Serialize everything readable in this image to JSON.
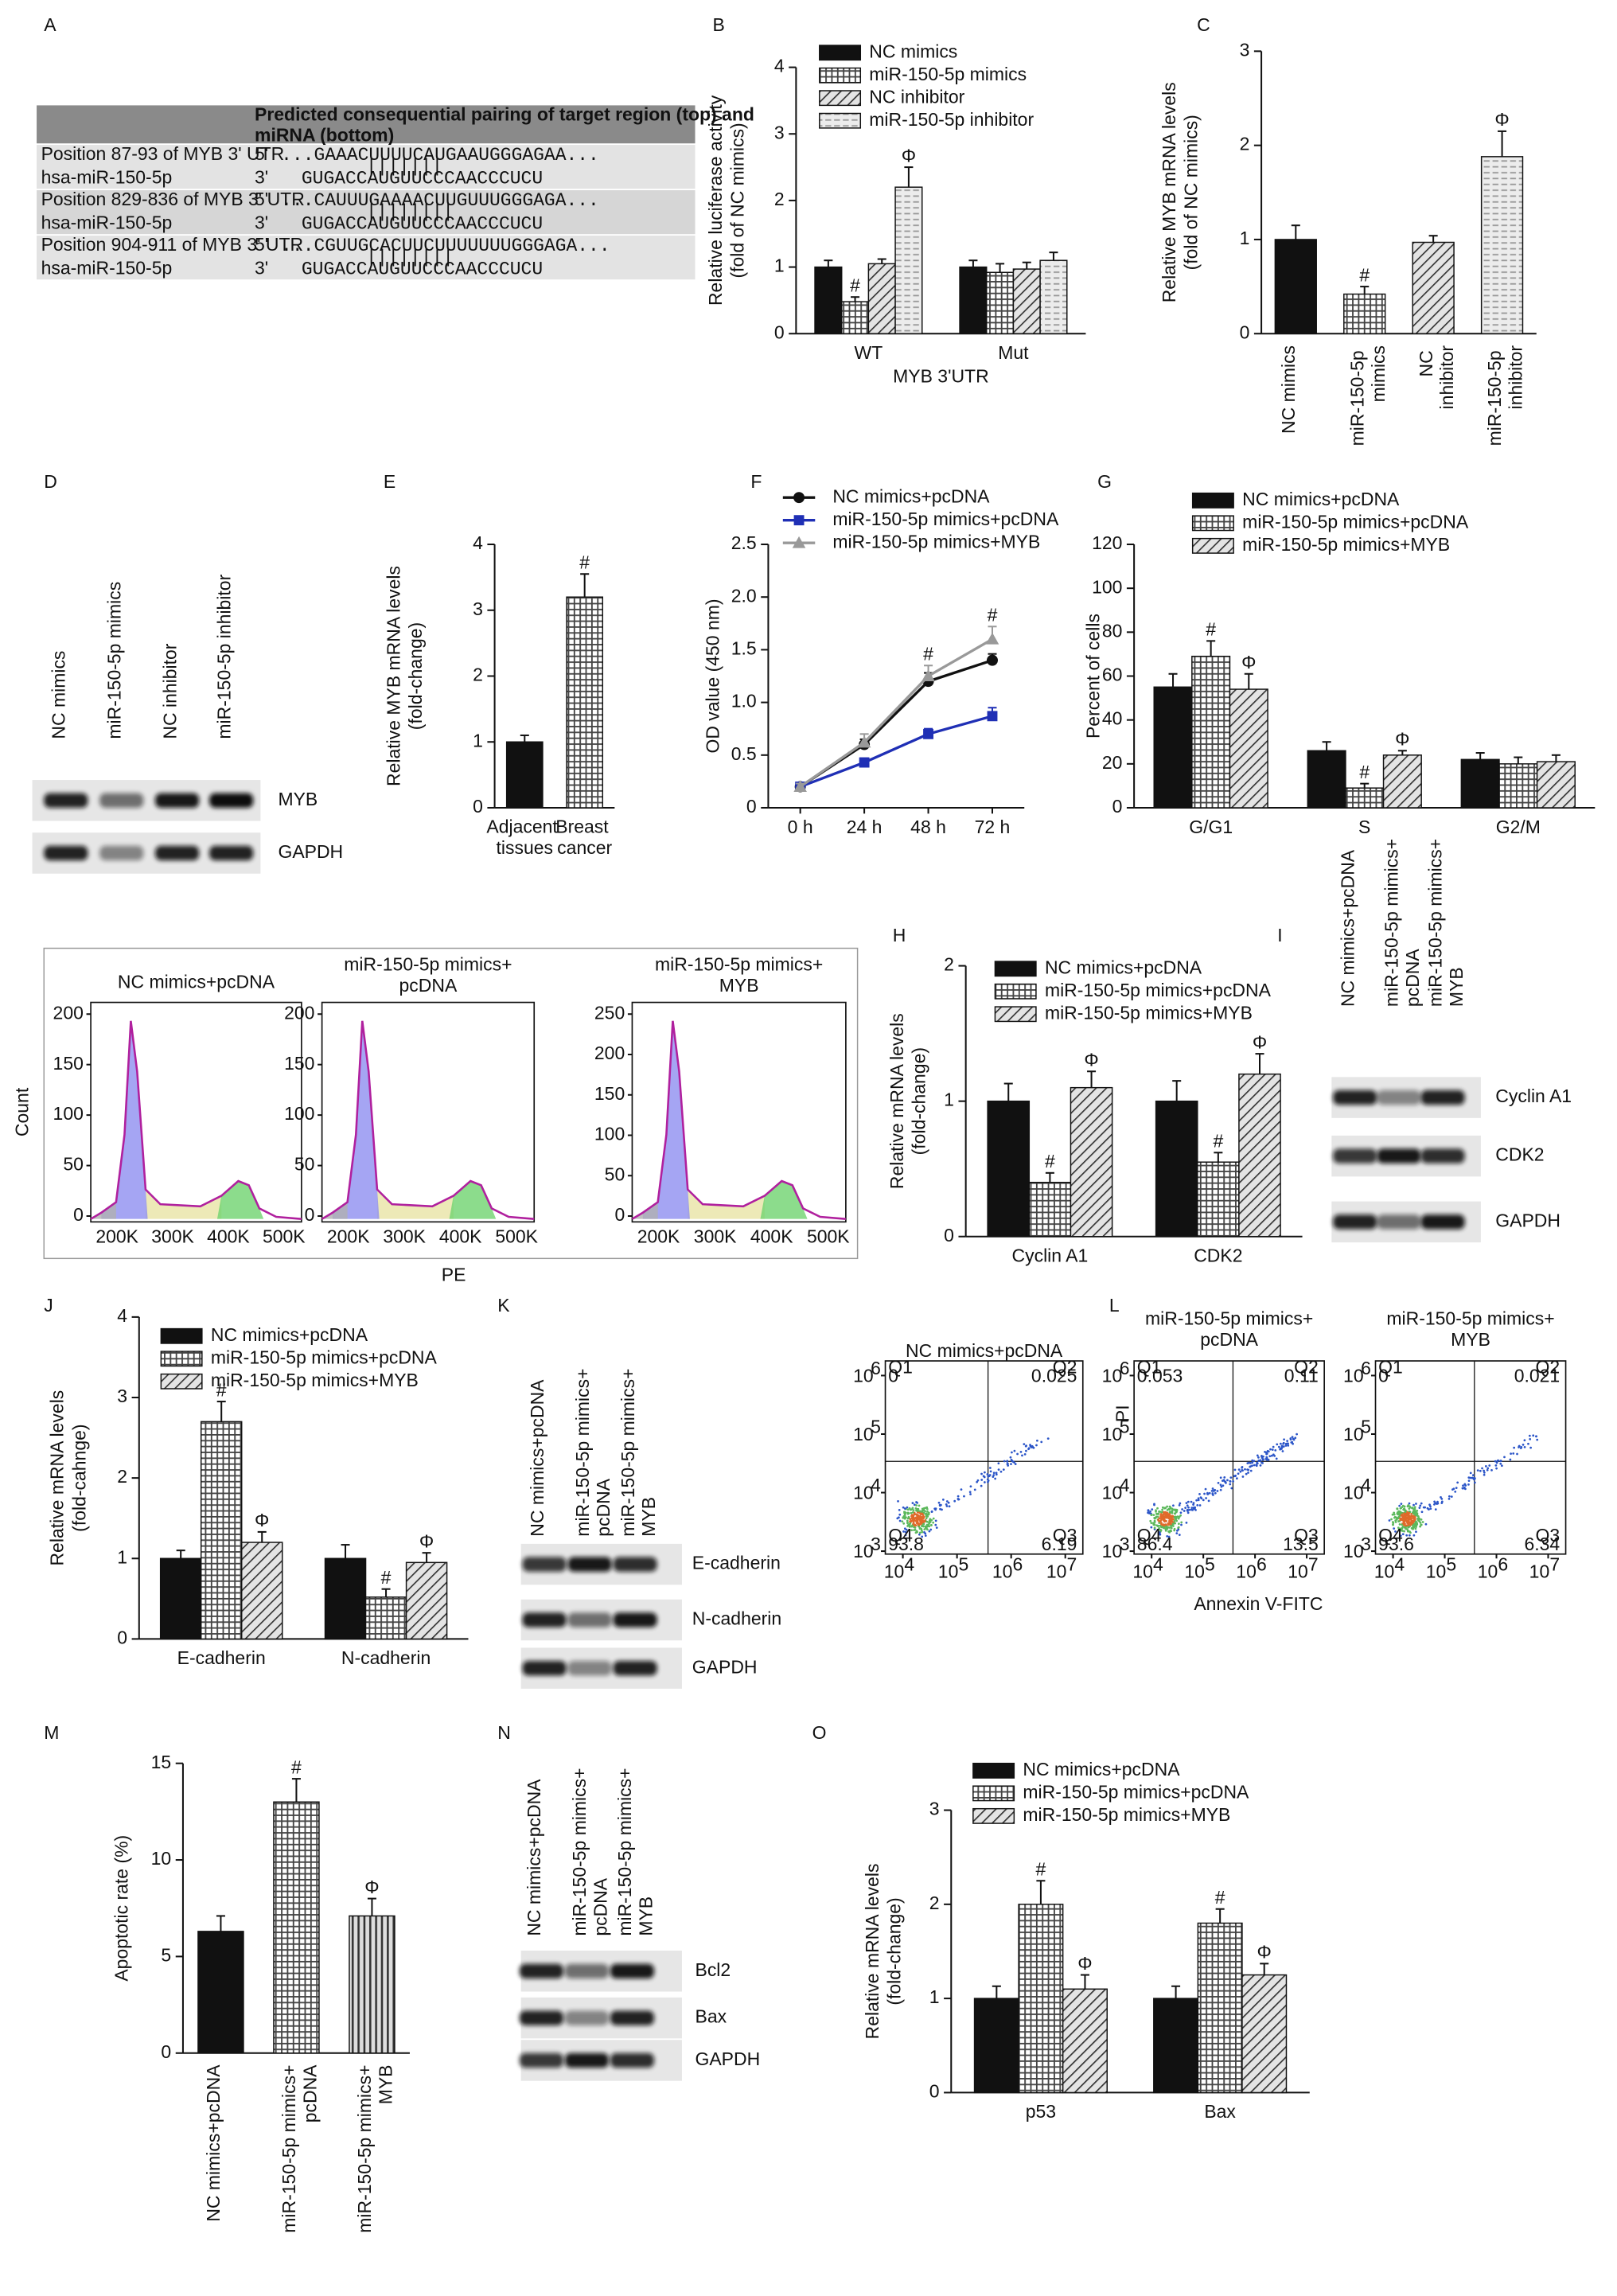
{
  "table": {
    "panel": "A",
    "header": "Predicted consequential pairing of target region (top) and miRNA (bottom)",
    "rows": [
      {
        "target": "Position 87-93 of MYB 3' UTR",
        "end5": "5'",
        "target_seq": "...GAAACUUUUCAUGAAUGGGAGAA...",
        "pairing": "|||||||",
        "mirna": "hsa-miR-150-5p",
        "end3": "3'",
        "mirna_seq": "GUGACCAUGUUCCCAACCCUCU"
      },
      {
        "target": "Position 829-836 of MYB 3' UTR",
        "end5": "5'",
        "target_seq": "...CAUUUGAAAACUUGUUUGGGAGA...",
        "pairing": "||||||||",
        "mirna": "hsa-miR-150-5p",
        "end3": "3'",
        "mirna_seq": "GUGACCAUGUUCCCAACCCUCU"
      },
      {
        "target": "Position 904-911 of MYB 3' UTR",
        "end5": "5'",
        "target_seq": "...CGUUGCACUUCUUUUUUUGGGAGA...",
        "pairing": "||||||||",
        "mirna": "hsa-miR-150-5p",
        "end3": "3'",
        "mirna_seq": "GUGACCAUGUUCCCAACCCUCU"
      }
    ]
  },
  "chart_data": [
    {
      "panel": "B",
      "type": "bar",
      "ylabel": [
        "Relative luciferase activity",
        "(fold of NC mimics)"
      ],
      "xlabel": "MYB 3'UTR",
      "categories": [
        "WT",
        "Mut"
      ],
      "series": [
        {
          "name": "NC mimics",
          "pattern": "solid",
          "values": [
            1.0,
            1.0
          ],
          "errors": [
            0.1,
            0.1
          ]
        },
        {
          "name": "miR-150-5p mimics",
          "pattern": "grid",
          "values": [
            0.48,
            0.92
          ],
          "errors": [
            0.07,
            0.13
          ],
          "markers": [
            "#",
            null
          ]
        },
        {
          "name": "NC inhibitor",
          "pattern": "hatch",
          "values": [
            1.05,
            0.97
          ],
          "errors": [
            0.07,
            0.1
          ]
        },
        {
          "name": "miR-150-5p inhibitor",
          "pattern": "dash",
          "values": [
            2.2,
            1.1
          ],
          "errors": [
            0.3,
            0.12
          ],
          "markers": [
            "Φ",
            null
          ]
        }
      ],
      "ylim": [
        0,
        4
      ],
      "yticks": [
        0,
        1,
        2,
        3,
        4
      ],
      "legend": "upper left"
    },
    {
      "panel": "C",
      "type": "bar",
      "ylabel": [
        "Relative MYB mRNA levels",
        "(fold of NC mimics)"
      ],
      "categories": [
        "NC mimics",
        "miR-150-5p mimics",
        "NC inhibitor",
        "miR-150-5p inhibitor"
      ],
      "values": [
        1.0,
        0.42,
        0.97,
        1.88
      ],
      "errors": [
        0.15,
        0.08,
        0.07,
        0.27
      ],
      "markers": [
        null,
        "#",
        null,
        "Φ"
      ],
      "patterns": [
        "solid",
        "grid",
        "hatch",
        "dash"
      ],
      "ylim": [
        0,
        3
      ],
      "yticks": [
        0,
        1,
        2,
        3
      ]
    },
    {
      "panel": "E",
      "type": "bar",
      "ylabel": [
        "Relative MYB mRNA levels",
        "(fold-change)"
      ],
      "categories": [
        "Adjacent tissues",
        "Breast cancer"
      ],
      "values": [
        1.0,
        3.2
      ],
      "errors": [
        0.1,
        0.35
      ],
      "markers": [
        null,
        "#"
      ],
      "patterns": [
        "solid",
        "grid"
      ],
      "ylim": [
        0,
        4
      ],
      "yticks": [
        0,
        1,
        2,
        3,
        4
      ]
    },
    {
      "panel": "F",
      "type": "line",
      "ylabel": [
        "OD value (450 nm)"
      ],
      "x": [
        "0 h",
        "24 h",
        "48 h",
        "72 h"
      ],
      "series": [
        {
          "name": "NC mimics+pcDNA",
          "color": "#111111",
          "marker": "circle",
          "values": [
            0.2,
            0.6,
            1.2,
            1.4
          ],
          "errors": [
            0.03,
            0.05,
            0.08,
            0.06
          ]
        },
        {
          "name": "miR-150-5p mimics+pcDNA",
          "color": "#1f2fb5",
          "marker": "square",
          "values": [
            0.2,
            0.43,
            0.7,
            0.87
          ],
          "errors": [
            0.03,
            0.04,
            0.05,
            0.08
          ]
        },
        {
          "name": "miR-150-5p mimics+MYB",
          "color": "#999999",
          "marker": "triangle",
          "values": [
            0.2,
            0.62,
            1.25,
            1.6
          ],
          "errors": [
            0.03,
            0.08,
            0.1,
            0.12
          ],
          "markers": [
            null,
            null,
            "#",
            "#"
          ]
        }
      ],
      "ylim": [
        0,
        2.5
      ],
      "yticks": [
        0,
        0.5,
        {
          "value": 1,
          "label": "1.0"
        },
        1.5,
        {
          "value": 2,
          "label": "2.0"
        },
        2.5
      ],
      "legend": "upper left"
    },
    {
      "panel": "G",
      "type": "bar",
      "ylabel": [
        "Percent of cells"
      ],
      "categories": [
        "G/G1",
        "S",
        "G2/M"
      ],
      "series": [
        {
          "name": "NC mimics+pcDNA",
          "pattern": "solid",
          "values": [
            55,
            26,
            22
          ],
          "errors": [
            6,
            4,
            3
          ]
        },
        {
          "name": "miR-150-5p mimics+pcDNA",
          "pattern": "grid",
          "values": [
            69,
            9,
            20
          ],
          "errors": [
            7,
            2,
            3
          ],
          "markers": [
            "#",
            "#",
            null
          ]
        },
        {
          "name": "miR-150-5p mimics+MYB",
          "pattern": "hatch",
          "values": [
            54,
            24,
            21
          ],
          "errors": [
            7,
            2,
            3
          ],
          "markers": [
            "Φ",
            "Φ",
            null
          ]
        }
      ],
      "ylim": [
        0,
        120
      ],
      "yticks": [
        0,
        20,
        40,
        60,
        80,
        100,
        120
      ],
      "legend": "upper left"
    },
    {
      "panel": "H",
      "type": "bar",
      "ylabel": [
        "Relative mRNA levels",
        "(fold-change)"
      ],
      "categories": [
        "Cyclin A1",
        "CDK2"
      ],
      "series": [
        {
          "name": "NC mimics+pcDNA",
          "pattern": "solid",
          "values": [
            1.0,
            1.0
          ],
          "errors": [
            0.13,
            0.15
          ]
        },
        {
          "name": "miR-150-5p mimics+pcDNA",
          "pattern": "grid",
          "values": [
            0.4,
            0.55
          ],
          "errors": [
            0.07,
            0.07
          ],
          "markers": [
            "#",
            "#"
          ]
        },
        {
          "name": "miR-150-5p mimics+MYB",
          "pattern": "hatch",
          "values": [
            1.1,
            1.2
          ],
          "errors": [
            0.12,
            0.15
          ],
          "markers": [
            "Φ",
            "Φ"
          ]
        }
      ],
      "ylim": [
        0,
        2
      ],
      "yticks": [
        0,
        1,
        2
      ],
      "legend": "upper left"
    },
    {
      "panel": "J",
      "type": "bar",
      "ylabel": [
        "Relative mRNA levels",
        "(fold-cahnge)"
      ],
      "categories": [
        "E-cadherin",
        "N-cadherin"
      ],
      "series": [
        {
          "name": "NC mimics+pcDNA",
          "pattern": "solid",
          "values": [
            1.0,
            1.0
          ],
          "errors": [
            0.1,
            0.17
          ]
        },
        {
          "name": "miR-150-5p mimics+pcDNA",
          "pattern": "grid",
          "values": [
            2.7,
            0.52
          ],
          "errors": [
            0.25,
            0.1
          ],
          "markers": [
            "#",
            "#"
          ]
        },
        {
          "name": "miR-150-5p mimics+MYB",
          "pattern": "hatch",
          "values": [
            1.2,
            0.95
          ],
          "errors": [
            0.13,
            0.12
          ],
          "markers": [
            "Φ",
            "Φ"
          ]
        }
      ],
      "ylim": [
        0,
        4
      ],
      "yticks": [
        0,
        1,
        2,
        3,
        4
      ],
      "legend": "upper left"
    },
    {
      "panel": "M",
      "type": "bar",
      "ylabel": [
        "Apoptotic rate (%)"
      ],
      "categories": [
        "NC mimics+pcDNA",
        "miR-150-5p mimics+pcDNA",
        "miR-150-5p mimics+MYB"
      ],
      "values": [
        6.3,
        13,
        7.1
      ],
      "errors": [
        0.8,
        1.2,
        0.9
      ],
      "markers": [
        null,
        "#",
        "Φ"
      ],
      "patterns": [
        "solid",
        "grid",
        "vstripe"
      ],
      "ylim": [
        0,
        15
      ],
      "yticks": [
        0,
        5,
        10,
        15
      ]
    },
    {
      "panel": "O",
      "type": "bar",
      "ylabel": [
        "Relative mRNA levels",
        "(fold-change)"
      ],
      "categories": [
        "p53",
        "Bax"
      ],
      "series": [
        {
          "name": "NC mimics+pcDNA",
          "pattern": "solid",
          "values": [
            1.0,
            1.0
          ],
          "errors": [
            0.13,
            0.13
          ]
        },
        {
          "name": "miR-150-5p mimics+pcDNA",
          "pattern": "grid",
          "values": [
            2.0,
            1.8
          ],
          "errors": [
            0.25,
            0.15
          ],
          "markers": [
            "#",
            "#"
          ]
        },
        {
          "name": "miR-150-5p mimics+MYB",
          "pattern": "hatch",
          "values": [
            1.1,
            1.25
          ],
          "errors": [
            0.15,
            0.12
          ],
          "markers": [
            "Φ",
            "Φ"
          ]
        }
      ],
      "ylim": [
        0,
        3
      ],
      "yticks": [
        0,
        1,
        2,
        3
      ],
      "legend": "upper left"
    }
  ],
  "blots": [
    {
      "panel": "D",
      "lanes": [
        "NC mimics",
        "miR-150-5p mimics",
        "NC inhibitor",
        "miR-150-5p inhibitor"
      ],
      "bands": [
        "MYB",
        "GAPDH"
      ]
    },
    {
      "panel": "I",
      "lanes": [
        "NC mimics+pcDNA",
        "miR-150-5p mimics+pcDNA",
        "miR-150-5p mimics+MYB"
      ],
      "bands": [
        "Cyclin A1",
        "CDK2",
        "GAPDH"
      ]
    },
    {
      "panel": "K",
      "lanes": [
        "NC mimics+pcDNA",
        "miR-150-5p mimics+pcDNA",
        "miR-150-5p mimics+MYB"
      ],
      "bands": [
        "E-cadherin",
        "N-cadherin",
        "GAPDH"
      ]
    },
    {
      "panel": "N",
      "lanes": [
        "NC mimics+pcDNA",
        "miR-150-5p mimics+pcDNA",
        "miR-150-5p mimics+MYB"
      ],
      "bands": [
        "Bcl2",
        "Bax",
        "GAPDH"
      ]
    }
  ],
  "cell_cycle": {
    "ylabel": "Count",
    "xlabel": "PE",
    "panels": [
      {
        "title": "NC mimics+pcDNA",
        "yticks": [
          0,
          50,
          100,
          150,
          200
        ],
        "xticks": [
          "200K",
          "300K",
          "400K",
          "500K"
        ]
      },
      {
        "title": "miR-150-5p mimics+pcDNA",
        "yticks": [
          0,
          50,
          100,
          150,
          200
        ],
        "xticks": [
          "200K",
          "300K",
          "400K",
          "500K"
        ]
      },
      {
        "title": "miR-150-5p mimics+MYB",
        "yticks": [
          0,
          50,
          100,
          150,
          200,
          250
        ],
        "xticks": [
          "200K",
          "300K",
          "400K",
          "500K"
        ]
      }
    ]
  },
  "apoptosis": {
    "panel": "L",
    "ylabel": "PI",
    "xlabel": "Annexin V-FITC",
    "tick_base": "10",
    "xtick_exponents": [
      4,
      5,
      6,
      7
    ],
    "ytick_exponents": [
      3,
      4,
      5,
      6
    ],
    "panels": [
      {
        "title": "NC mimics+pcDNA",
        "quadrants": [
          [
            "Q1",
            "0"
          ],
          [
            "Q2",
            "0.025"
          ],
          [
            "Q3",
            "6.19"
          ],
          [
            "Q4",
            "93.8"
          ]
        ]
      },
      {
        "title": "miR-150-5p mimics+pcDNA",
        "quadrants": [
          [
            "Q1",
            "0.053"
          ],
          [
            "Q2",
            "0.11"
          ],
          [
            "Q3",
            "13.5"
          ],
          [
            "Q4",
            "86.4"
          ]
        ]
      },
      {
        "title": "miR-150-5p mimics+MYB",
        "quadrants": [
          [
            "Q1",
            "0"
          ],
          [
            "Q2",
            "0.021"
          ],
          [
            "Q3",
            "6.34"
          ],
          [
            "Q4",
            "93.6"
          ]
        ]
      }
    ]
  }
}
